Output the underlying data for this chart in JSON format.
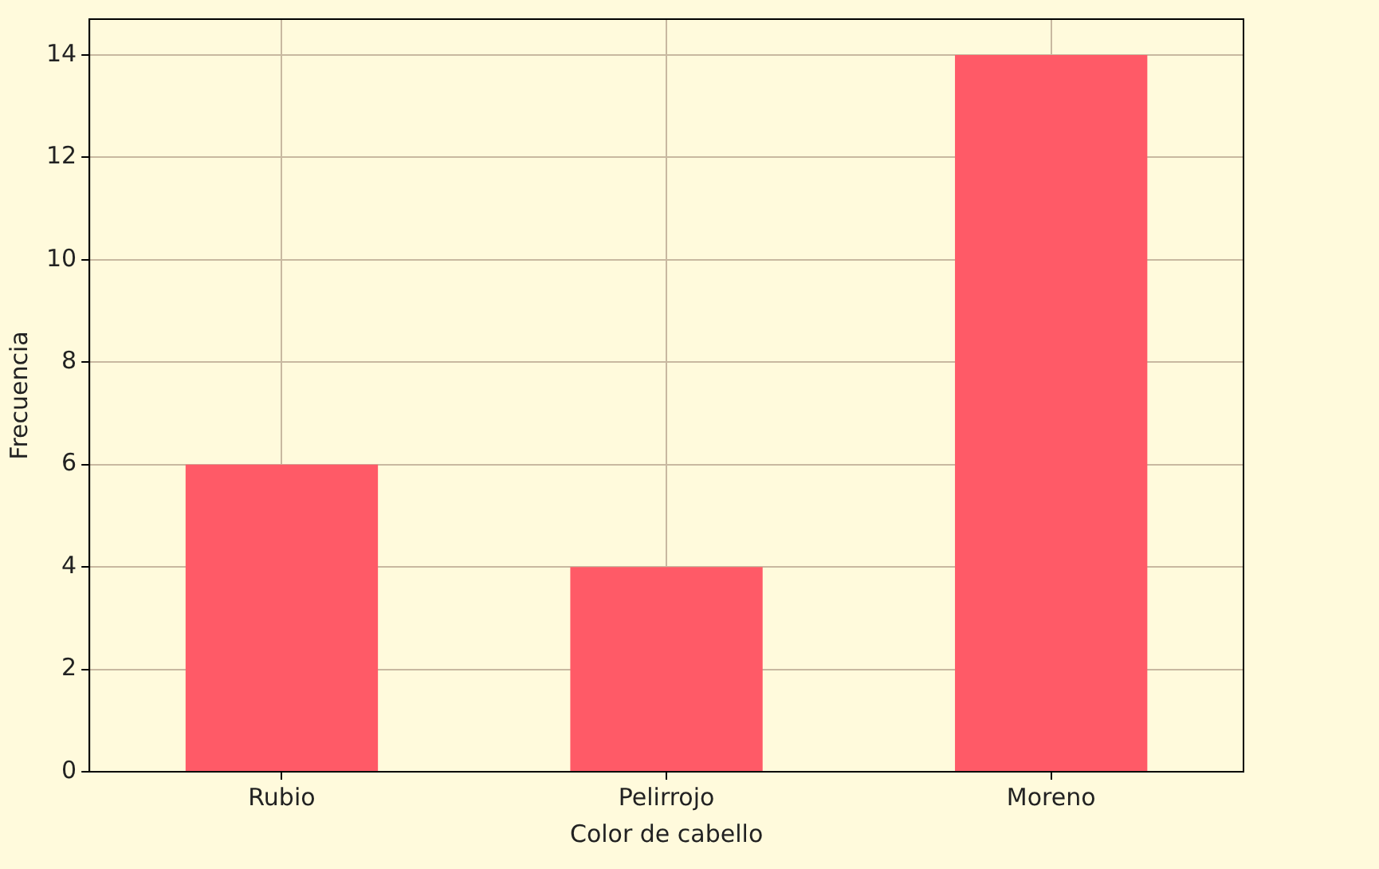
{
  "chart_data": {
    "type": "bar",
    "xlabel": "Color de cabello",
    "ylabel": "Frecuencia",
    "categories": [
      "Rubio",
      "Pelirrojo",
      "Moreno"
    ],
    "values": [
      6,
      4,
      14
    ],
    "color": "#ff5a67",
    "ylim": [
      0,
      14.7
    ],
    "yticks": [
      0,
      2,
      4,
      6,
      8,
      10,
      12,
      14
    ],
    "grid": true
  }
}
